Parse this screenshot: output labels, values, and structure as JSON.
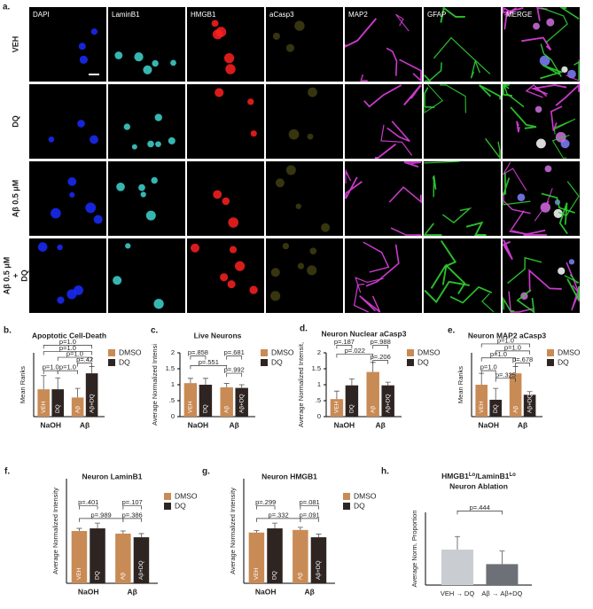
{
  "figure_label": "a.",
  "microscopy": {
    "columns": [
      "DAPI",
      "LaminB1",
      "HMGB1",
      "aCasp3",
      "MAP2",
      "GFAP",
      "MERGE"
    ],
    "rows": [
      [
        "VEH"
      ],
      [
        "DQ"
      ],
      [
        "Aβ 0.5 μM"
      ],
      [
        "Aβ 0.5 μM",
        "+",
        "DQ"
      ]
    ]
  },
  "chart_data": [
    {
      "type": "bar",
      "panel_label": "b.",
      "title": "Apoptotic Cell-Death",
      "ylabel": "Mean Ranks",
      "ylim": [
        0,
        14
      ],
      "groups": [
        "NaOH",
        "Aβ"
      ],
      "series": [
        {
          "name": "DMSO",
          "color": "#c98b55",
          "values": [
            6,
            4.2
          ],
          "errors": [
            3,
            2
          ],
          "bar_labels": [
            "VEH",
            "Aβ"
          ]
        },
        {
          "name": "DQ",
          "color": "#2e2522",
          "values": [
            6,
            9.5
          ],
          "errors": [
            2.5,
            1.5
          ],
          "bar_labels": [
            "DQ",
            "Aβ+DQ"
          ]
        }
      ],
      "annotations": [
        "p=1.0",
        "p=1.0",
        "p=1.0",
        "p=1.0",
        "p=1.0",
        "p=.42"
      ]
    },
    {
      "type": "bar",
      "panel_label": "c.",
      "title": "Live Neurons",
      "ylabel": "Average Normalized Intensi",
      "ylim": [
        0,
        2
      ],
      "yticks": [
        0,
        {
          "value": 0.5,
          "label": ".5"
        },
        1,
        1.5,
        2
      ],
      "groups": [
        "NaOH",
        "Aβ"
      ],
      "series": [
        {
          "name": "DMSO",
          "color": "#c98b55",
          "values": [
            1.05,
            0.92
          ],
          "errors": [
            0.15,
            0.12
          ],
          "bar_labels": [
            "VEH",
            "Aβ"
          ]
        },
        {
          "name": "DQ",
          "color": "#2e2522",
          "values": [
            1.0,
            0.9
          ],
          "errors": [
            0.2,
            0.1
          ],
          "bar_labels": [
            "DQ",
            "Aβ+DQ"
          ]
        }
      ],
      "annotations": [
        "p=.858",
        "p=.681",
        "p=.551",
        "p=.992"
      ]
    },
    {
      "type": "bar",
      "panel_label": "d.",
      "title": "Neuron Nuclear aCasp3",
      "ylabel": "Average Normalized Intensit,",
      "ylim": [
        0,
        2
      ],
      "yticks": [
        0,
        {
          "value": 0.5,
          "label": ".5"
        },
        1,
        1.5,
        2
      ],
      "groups": [
        "NaOH",
        "Aβ"
      ],
      "series": [
        {
          "name": "DMSO",
          "color": "#c98b55",
          "values": [
            0.55,
            1.4
          ],
          "errors": [
            0.25,
            0.3
          ],
          "bar_labels": [
            "VEH",
            "Aβ"
          ]
        },
        {
          "name": "DQ",
          "color": "#2e2522",
          "values": [
            0.98,
            0.98
          ],
          "errors": [
            0.2,
            0.1
          ],
          "bar_labels": [
            "DQ",
            "Aβ+DQ"
          ]
        }
      ],
      "annotations": [
        "p=.187",
        "p=.988",
        "p=.022",
        "p=.206"
      ]
    },
    {
      "type": "bar",
      "panel_label": "e.",
      "title": "Neuron MAP2 aCasp3",
      "ylabel": "Mean Ranks",
      "ylim": [
        0,
        14
      ],
      "groups": [
        "NaOH",
        "Aβ"
      ],
      "series": [
        {
          "name": "DMSO",
          "color": "#c98b55",
          "values": [
            7,
            9.5
          ],
          "errors": [
            2.5,
            1.5
          ],
          "bar_labels": [
            "VEH",
            "Aβ"
          ]
        },
        {
          "name": "DQ",
          "color": "#2e2522",
          "values": [
            3.7,
            4.8
          ],
          "errors": [
            2.5,
            0.7
          ],
          "bar_labels": [
            "DQ",
            "Aβ+DQ"
          ]
        }
      ],
      "annotations": [
        "p=1.0",
        "p=1.0",
        "p=1.0",
        "p=.678",
        "p=1.0",
        "p=.325"
      ]
    },
    {
      "type": "bar",
      "panel_label": "f.",
      "title": "Neuron LaminB1",
      "ylabel": "Average Normalized Intensity",
      "ylim": [
        0,
        2
      ],
      "groups": [
        "NaOH",
        "Aβ"
      ],
      "series": [
        {
          "name": "DMSO",
          "color": "#c98b55",
          "values": [
            1.0,
            0.95
          ],
          "errors": [
            0.05,
            0.05
          ],
          "bar_labels": [
            "VEH",
            "Aβ"
          ]
        },
        {
          "name": "DQ",
          "color": "#2e2522",
          "values": [
            1.05,
            0.88
          ],
          "errors": [
            0.1,
            0.07
          ],
          "bar_labels": [
            "DQ",
            "Aβ+DQ"
          ]
        }
      ],
      "annotations": [
        "p=.401",
        "p=.107",
        "p=.989",
        "p=.386"
      ]
    },
    {
      "type": "bar",
      "panel_label": "g.",
      "title": "Neuron HMGB1",
      "ylabel": "Average Normalized Intensity",
      "ylim": [
        0,
        2
      ],
      "groups": [
        "NaOH",
        "Aβ"
      ],
      "series": [
        {
          "name": "DMSO",
          "color": "#c98b55",
          "values": [
            0.97,
            1.02
          ],
          "errors": [
            0.04,
            0.05
          ],
          "bar_labels": [
            "VEH",
            "Aβ"
          ]
        },
        {
          "name": "DQ",
          "color": "#2e2522",
          "values": [
            1.05,
            0.88
          ],
          "errors": [
            0.1,
            0.06
          ],
          "bar_labels": [
            "DQ",
            "Aβ+DQ"
          ]
        }
      ],
      "annotations": [
        "p=.299",
        "p=.081",
        "p=.332",
        "p=.091"
      ]
    },
    {
      "type": "simplebar",
      "panel_label": "h.",
      "title_parts": [
        "HMGB1",
        "Lo",
        "/LaminB1",
        "Lo"
      ],
      "subtitle": "Neuron Ablation",
      "ylabel": "Average Norm. Proportion",
      "ylim": [
        0,
        2.5
      ],
      "categories": [
        "VEH → DQ",
        "Aβ → Aβ+DQ"
      ],
      "values": [
        1.22,
        0.72
      ],
      "errors": [
        0.45,
        0.45
      ],
      "colors": [
        "#c9cdd2",
        "#6d7077"
      ],
      "annotations": [
        "p=.444"
      ]
    }
  ]
}
